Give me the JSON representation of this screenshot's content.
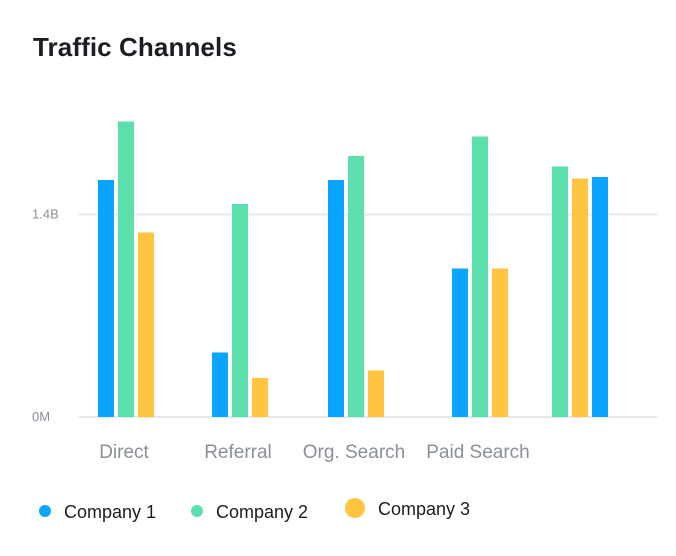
{
  "chart_data": {
    "type": "bar",
    "title": "Traffic Channels",
    "xlabel": "",
    "ylabel": "",
    "categories": [
      "Direct",
      "Referral",
      "Org. Search",
      "Paid Search",
      ""
    ],
    "series": [
      {
        "name": "Company 1",
        "color": "#0aa5ff",
        "values": [
          1.58,
          0.43,
          1.58,
          0.99,
          1.6
        ]
      },
      {
        "name": "Company 2",
        "color": "#5ddfad",
        "values": [
          1.97,
          1.42,
          1.74,
          1.87,
          1.67
        ]
      },
      {
        "name": "Company 3",
        "color": "#ffc540",
        "values": [
          1.23,
          0.26,
          0.31,
          0.99,
          1.59
        ]
      }
    ],
    "yticks": [
      {
        "value": 0,
        "label": "0M"
      },
      {
        "value": 1.35,
        "label": "1.4B"
      }
    ],
    "ylim": [
      0,
      2.1
    ],
    "units": "billions",
    "grid": true,
    "legend_position": "bottom-left"
  }
}
